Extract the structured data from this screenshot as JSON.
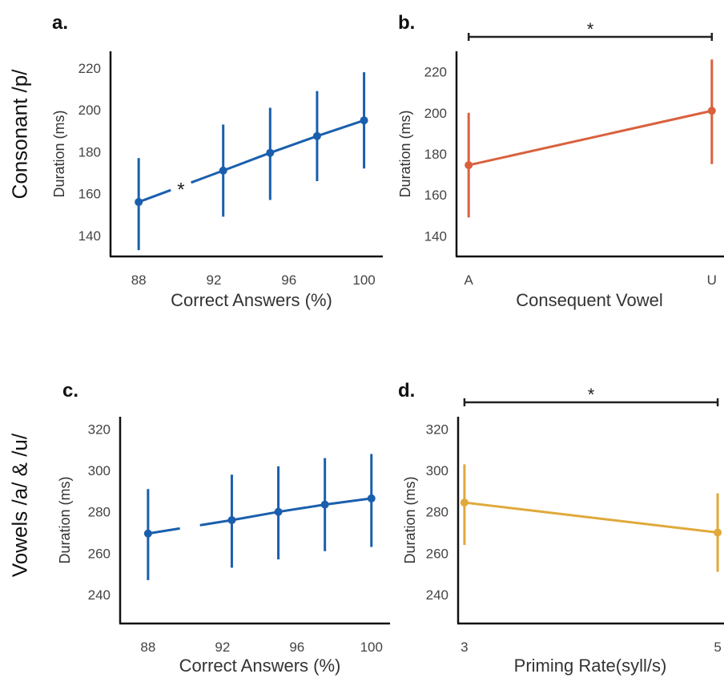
{
  "row_labels": {
    "top": "Consonant /p/",
    "bottom": "Vowels /a/ & /u/"
  },
  "colors": {
    "blue": "#1a5fad",
    "red": "#d9613e",
    "gold": "#e0a93a",
    "axis": "#111111",
    "tick_text": "#444444",
    "sig_bar": "#222222"
  },
  "chart_data": [
    {
      "panel": "a.",
      "type": "line",
      "color": "blue",
      "xlabel": "Correct Answers (%)",
      "ylabel": "Duration (ms)",
      "xlim": [
        86.5,
        101
      ],
      "ylim": [
        130,
        228
      ],
      "xticks": [
        88,
        92,
        96,
        100
      ],
      "yticks": [
        140,
        160,
        180,
        200,
        220
      ],
      "x": [
        88,
        92.5,
        95,
        97.5,
        100
      ],
      "y": [
        156,
        171,
        179.5,
        187.5,
        195
      ],
      "err_low": [
        133,
        149,
        157,
        166,
        172
      ],
      "err_high": [
        177,
        193,
        201,
        209,
        218
      ],
      "gap_between": [
        0,
        1
      ],
      "gap_marker": "*",
      "significance": null
    },
    {
      "panel": "b.",
      "type": "line",
      "color": "red",
      "xlabel": "Consequent Vowel",
      "ylabel": "Duration (ms)",
      "xlim": [
        -0.05,
        1.05
      ],
      "ylim": [
        130,
        230
      ],
      "xticks": [
        "A",
        "U"
      ],
      "yticks": [
        140,
        160,
        180,
        200,
        220
      ],
      "x": [
        0,
        1
      ],
      "y": [
        174.5,
        201
      ],
      "err_low": [
        149,
        175
      ],
      "err_high": [
        200,
        226
      ],
      "gap_between": null,
      "significance": {
        "from": 0,
        "to": 1,
        "label": "*"
      }
    },
    {
      "panel": "c.",
      "type": "line",
      "color": "blue",
      "xlabel": "Correct Answers (%)",
      "ylabel": "Duration (ms)",
      "xlim": [
        86.5,
        101
      ],
      "ylim": [
        226,
        326
      ],
      "xticks": [
        88,
        92,
        96,
        100
      ],
      "yticks": [
        240,
        260,
        280,
        300,
        320
      ],
      "x": [
        88,
        92.5,
        95,
        97.5,
        100
      ],
      "y": [
        269.5,
        276,
        280,
        283.5,
        286.5
      ],
      "err_low": [
        247,
        253,
        257,
        261,
        263
      ],
      "err_high": [
        291,
        298,
        302,
        306,
        308
      ],
      "gap_between": [
        0,
        1
      ],
      "gap_marker": "",
      "significance": null
    },
    {
      "panel": "d.",
      "type": "line",
      "color": "gold",
      "xlabel": "Priming Rate(syll/s)",
      "ylabel": "Duration (ms)",
      "xlim": [
        2.95,
        5.05
      ],
      "ylim": [
        226,
        326
      ],
      "xticks": [
        3,
        5
      ],
      "yticks": [
        240,
        260,
        280,
        300,
        320
      ],
      "x": [
        3,
        5
      ],
      "y": [
        284.5,
        270
      ],
      "err_low": [
        264,
        251
      ],
      "err_high": [
        303,
        289
      ],
      "gap_between": null,
      "significance": {
        "from": 0,
        "to": 1,
        "label": "*"
      }
    }
  ]
}
